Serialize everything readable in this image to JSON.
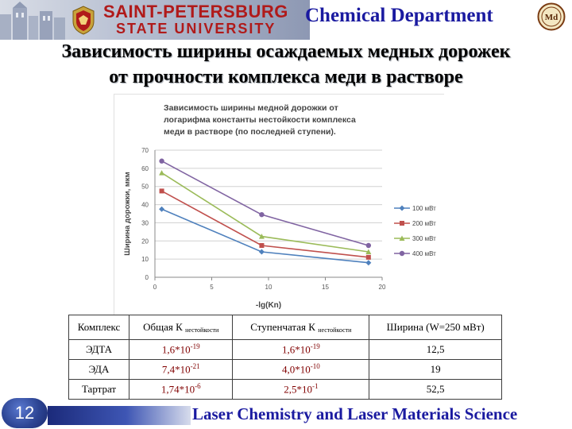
{
  "header": {
    "logo_line1": "SAINT-PETERSBURG",
    "logo_line2": "STATE UNIVERSITY",
    "department": "Chemical Department",
    "badge_text": "Md"
  },
  "slide": {
    "title_line1": "Зависимость ширины осаждаемых медных дорожек",
    "title_line2": "от прочности комплекса меди в растворе"
  },
  "colors": {
    "title_blue": "#1a1aa0",
    "logo_red": "#b01a1a",
    "table_value": "#800000",
    "s100": "#4f81bd",
    "s200": "#c0504d",
    "s300": "#9bbb59",
    "s400": "#8064a2"
  },
  "chart_data": {
    "type": "line",
    "title_lines": [
      "Зависимость ширины медной дорожки от",
      "логарифма константы нестойкости комплекса",
      "меди в растворе (по последней ступени)."
    ],
    "xlabel": "-lg(Kn)",
    "ylabel": "Ширина дорожки, мкм",
    "xlim": [
      0,
      20
    ],
    "ylim": [
      0,
      70
    ],
    "xticks": [
      0,
      5,
      10,
      15,
      20
    ],
    "yticks": [
      0,
      10,
      20,
      30,
      40,
      50,
      60,
      70
    ],
    "grid": true,
    "legend_position": "right",
    "x": [
      0.6,
      9.4,
      18.8
    ],
    "series": [
      {
        "name": "100 мВт",
        "values": [
          37.5,
          14,
          8
        ],
        "color": "#4f81bd",
        "marker": "diamond"
      },
      {
        "name": "200 мВт",
        "values": [
          47.5,
          17.5,
          11
        ],
        "color": "#c0504d",
        "marker": "square"
      },
      {
        "name": "300 мВт",
        "values": [
          57.5,
          22.5,
          14
        ],
        "color": "#9bbb59",
        "marker": "triangle"
      },
      {
        "name": "400 мВт",
        "values": [
          64,
          34.5,
          17.5
        ],
        "color": "#8064a2",
        "marker": "circle"
      }
    ]
  },
  "table": {
    "headers": {
      "complex": "Комплекс",
      "total_k": "Общая К",
      "total_k_sub": "нестойкости",
      "step_k": "Ступенчатая К",
      "step_k_sub": "нестойкости",
      "width": "Ширина (W=250 мВт)"
    },
    "rows": [
      {
        "complex": "ЭДТА",
        "total_m": "1,6*10",
        "total_e": "-19",
        "step_m": "1,6*10",
        "step_e": "-19",
        "width": "12,5"
      },
      {
        "complex": "ЭДА",
        "total_m": "7,4*10",
        "total_e": "-21",
        "step_m": "4,0*10",
        "step_e": "-10",
        "width": "19"
      },
      {
        "complex": "Тартрат",
        "total_m": "1,74*10",
        "total_e": "-6",
        "step_m": "2,5*10",
        "step_e": "-1",
        "width": "52,5"
      }
    ]
  },
  "footer": {
    "page_number": "12",
    "text": "Laser Chemistry and Laser Materials Science"
  }
}
